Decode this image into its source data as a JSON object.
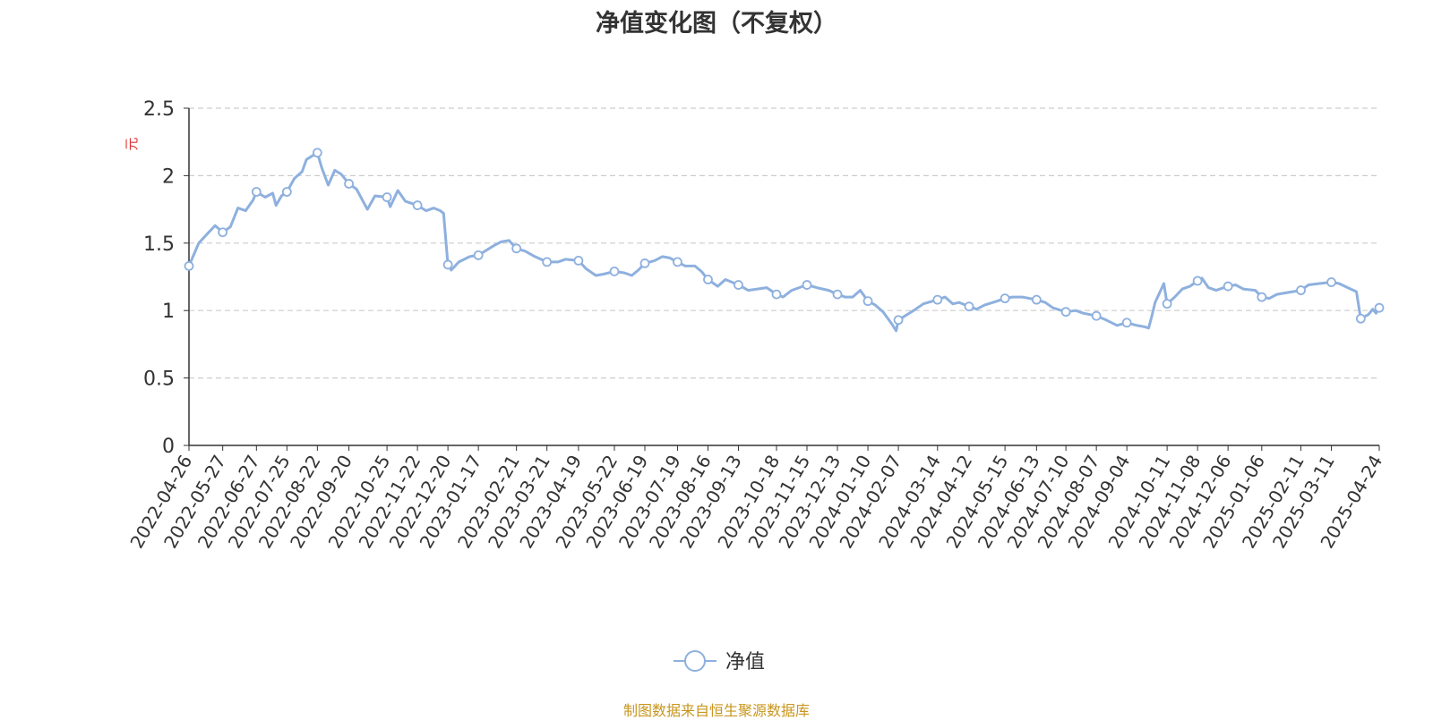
{
  "colors": {
    "line": "#8eb0de",
    "axis": "#333333",
    "grid": "#cccccc",
    "ylabel": "#e03030",
    "source": "#c8961e"
  },
  "chart_data": {
    "type": "line",
    "title": "净值变化图（不复权）",
    "ylabel": "元",
    "xlabel": "",
    "ylim": [
      0,
      2.5
    ],
    "yticks": [
      "0",
      "0.5",
      "1",
      "1.5",
      "2",
      "2.5"
    ],
    "grid": "horizontal dashed",
    "legend_position": "bottom-center",
    "x_tick_labels": [
      "2022-04-26",
      "2022-05-27",
      "2022-06-27",
      "2022-07-25",
      "2022-08-22",
      "2022-09-20",
      "2022-10-25",
      "2022-11-22",
      "2022-12-20",
      "2023-01-17",
      "2023-02-21",
      "2023-03-21",
      "2023-04-19",
      "2023-05-22",
      "2023-06-19",
      "2023-07-19",
      "2023-08-16",
      "2023-09-13",
      "2023-10-18",
      "2023-11-15",
      "2023-12-13",
      "2024-01-10",
      "2024-02-07",
      "2024-03-14",
      "2024-04-12",
      "2024-05-15",
      "2024-06-13",
      "2024-07-10",
      "2024-08-07",
      "2024-09-04",
      "2024-10-11",
      "2024-11-08",
      "2024-12-06",
      "2025-01-06",
      "2025-02-11",
      "2025-03-11",
      "2025-04-24"
    ],
    "series": [
      {
        "name": "净值",
        "points": [
          [
            "2022-04-26",
            1.33
          ],
          [
            "2022-05-05",
            1.5
          ],
          [
            "2022-05-13",
            1.57
          ],
          [
            "2022-05-20",
            1.63
          ],
          [
            "2022-05-27",
            1.58
          ],
          [
            "2022-06-03",
            1.62
          ],
          [
            "2022-06-10",
            1.76
          ],
          [
            "2022-06-17",
            1.74
          ],
          [
            "2022-06-24",
            1.82
          ],
          [
            "2022-06-27",
            1.88
          ],
          [
            "2022-07-05",
            1.84
          ],
          [
            "2022-07-12",
            1.87
          ],
          [
            "2022-07-15",
            1.78
          ],
          [
            "2022-07-20",
            1.85
          ],
          [
            "2022-07-25",
            1.88
          ],
          [
            "2022-08-01",
            1.98
          ],
          [
            "2022-08-08",
            2.03
          ],
          [
            "2022-08-12",
            2.12
          ],
          [
            "2022-08-22",
            2.17
          ],
          [
            "2022-08-26",
            2.06
          ],
          [
            "2022-09-01",
            1.93
          ],
          [
            "2022-09-07",
            2.04
          ],
          [
            "2022-09-13",
            2.01
          ],
          [
            "2022-09-20",
            1.94
          ],
          [
            "2022-09-27",
            1.9
          ],
          [
            "2022-10-07",
            1.75
          ],
          [
            "2022-10-14",
            1.85
          ],
          [
            "2022-10-25",
            1.84
          ],
          [
            "2022-10-28",
            1.77
          ],
          [
            "2022-11-04",
            1.89
          ],
          [
            "2022-11-11",
            1.81
          ],
          [
            "2022-11-22",
            1.78
          ],
          [
            "2022-11-30",
            1.74
          ],
          [
            "2022-12-07",
            1.76
          ],
          [
            "2022-12-13",
            1.74
          ],
          [
            "2022-12-16",
            1.72
          ],
          [
            "2022-12-20",
            1.34
          ],
          [
            "2022-12-23",
            1.3
          ],
          [
            "2022-12-30",
            1.36
          ],
          [
            "2023-01-09",
            1.4
          ],
          [
            "2023-01-17",
            1.41
          ],
          [
            "2023-01-31",
            1.48
          ],
          [
            "2023-02-07",
            1.51
          ],
          [
            "2023-02-14",
            1.52
          ],
          [
            "2023-02-21",
            1.46
          ],
          [
            "2023-03-01",
            1.44
          ],
          [
            "2023-03-10",
            1.4
          ],
          [
            "2023-03-21",
            1.36
          ],
          [
            "2023-03-31",
            1.36
          ],
          [
            "2023-04-07",
            1.38
          ],
          [
            "2023-04-19",
            1.37
          ],
          [
            "2023-04-26",
            1.31
          ],
          [
            "2023-05-05",
            1.26
          ],
          [
            "2023-05-12",
            1.27
          ],
          [
            "2023-05-22",
            1.29
          ],
          [
            "2023-05-31",
            1.28
          ],
          [
            "2023-06-07",
            1.26
          ],
          [
            "2023-06-13",
            1.3
          ],
          [
            "2023-06-19",
            1.35
          ],
          [
            "2023-06-28",
            1.37
          ],
          [
            "2023-07-05",
            1.4
          ],
          [
            "2023-07-12",
            1.39
          ],
          [
            "2023-07-19",
            1.36
          ],
          [
            "2023-07-26",
            1.33
          ],
          [
            "2023-08-04",
            1.33
          ],
          [
            "2023-08-10",
            1.29
          ],
          [
            "2023-08-16",
            1.23
          ],
          [
            "2023-08-25",
            1.18
          ],
          [
            "2023-09-01",
            1.23
          ],
          [
            "2023-09-13",
            1.19
          ],
          [
            "2023-09-22",
            1.15
          ],
          [
            "2023-10-09",
            1.17
          ],
          [
            "2023-10-18",
            1.12
          ],
          [
            "2023-10-24",
            1.1
          ],
          [
            "2023-11-01",
            1.15
          ],
          [
            "2023-11-15",
            1.19
          ],
          [
            "2023-11-24",
            1.17
          ],
          [
            "2023-12-05",
            1.15
          ],
          [
            "2023-12-13",
            1.12
          ],
          [
            "2023-12-20",
            1.1
          ],
          [
            "2023-12-27",
            1.1
          ],
          [
            "2024-01-03",
            1.15
          ],
          [
            "2024-01-10",
            1.07
          ],
          [
            "2024-01-17",
            1.04
          ],
          [
            "2024-01-24",
            0.99
          ],
          [
            "2024-02-01",
            0.9
          ],
          [
            "2024-02-05",
            0.85
          ],
          [
            "2024-02-07",
            0.93
          ],
          [
            "2024-02-21",
            1.0
          ],
          [
            "2024-03-01",
            1.05
          ],
          [
            "2024-03-14",
            1.08
          ],
          [
            "2024-03-21",
            1.1
          ],
          [
            "2024-03-28",
            1.05
          ],
          [
            "2024-04-03",
            1.06
          ],
          [
            "2024-04-12",
            1.03
          ],
          [
            "2024-04-19",
            1.01
          ],
          [
            "2024-04-26",
            1.04
          ],
          [
            "2024-05-08",
            1.07
          ],
          [
            "2024-05-15",
            1.09
          ],
          [
            "2024-05-22",
            1.1
          ],
          [
            "2024-05-31",
            1.1
          ],
          [
            "2024-06-13",
            1.08
          ],
          [
            "2024-06-21",
            1.06
          ],
          [
            "2024-06-28",
            1.02
          ],
          [
            "2024-07-10",
            0.99
          ],
          [
            "2024-07-19",
            1.0
          ],
          [
            "2024-07-26",
            0.98
          ],
          [
            "2024-08-07",
            0.96
          ],
          [
            "2024-08-16",
            0.93
          ],
          [
            "2024-08-26",
            0.89
          ],
          [
            "2024-09-04",
            0.91
          ],
          [
            "2024-09-13",
            0.89
          ],
          [
            "2024-09-20",
            0.88
          ],
          [
            "2024-09-24",
            0.87
          ],
          [
            "2024-09-27",
            0.96
          ],
          [
            "2024-09-30",
            1.06
          ],
          [
            "2024-10-08",
            1.2
          ],
          [
            "2024-10-11",
            1.05
          ],
          [
            "2024-10-18",
            1.1
          ],
          [
            "2024-10-25",
            1.16
          ],
          [
            "2024-11-01",
            1.18
          ],
          [
            "2024-11-08",
            1.22
          ],
          [
            "2024-11-12",
            1.24
          ],
          [
            "2024-11-18",
            1.17
          ],
          [
            "2024-11-25",
            1.15
          ],
          [
            "2024-12-06",
            1.18
          ],
          [
            "2024-12-13",
            1.19
          ],
          [
            "2024-12-20",
            1.16
          ],
          [
            "2024-12-31",
            1.15
          ],
          [
            "2025-01-06",
            1.1
          ],
          [
            "2025-01-13",
            1.09
          ],
          [
            "2025-01-20",
            1.12
          ],
          [
            "2025-01-27",
            1.13
          ],
          [
            "2025-02-11",
            1.15
          ],
          [
            "2025-02-18",
            1.19
          ],
          [
            "2025-02-28",
            1.2
          ],
          [
            "2025-03-11",
            1.21
          ],
          [
            "2025-03-18",
            1.2
          ],
          [
            "2025-03-26",
            1.17
          ],
          [
            "2025-04-03",
            1.14
          ],
          [
            "2025-04-07",
            0.94
          ],
          [
            "2025-04-14",
            0.97
          ],
          [
            "2025-04-18",
            1.01
          ],
          [
            "2025-04-21",
            0.98
          ],
          [
            "2025-04-24",
            1.02
          ]
        ],
        "markers": [
          "2022-04-26",
          "2022-05-27",
          "2022-06-27",
          "2022-07-25",
          "2022-08-22",
          "2022-09-20",
          "2022-10-25",
          "2022-11-22",
          "2022-12-20",
          "2023-01-17",
          "2023-02-21",
          "2023-03-21",
          "2023-04-19",
          "2023-05-22",
          "2023-06-19",
          "2023-07-19",
          "2023-08-16",
          "2023-09-13",
          "2023-10-18",
          "2023-11-15",
          "2023-12-13",
          "2024-01-10",
          "2024-02-07",
          "2024-03-14",
          "2024-04-12",
          "2024-05-15",
          "2024-06-13",
          "2024-07-10",
          "2024-08-07",
          "2024-09-04",
          "2024-10-11",
          "2024-11-08",
          "2024-12-06",
          "2025-01-06",
          "2025-02-11",
          "2025-03-11",
          "2025-04-07",
          "2025-04-24"
        ]
      }
    ]
  },
  "source_note": "制图数据来自恒生聚源数据库"
}
